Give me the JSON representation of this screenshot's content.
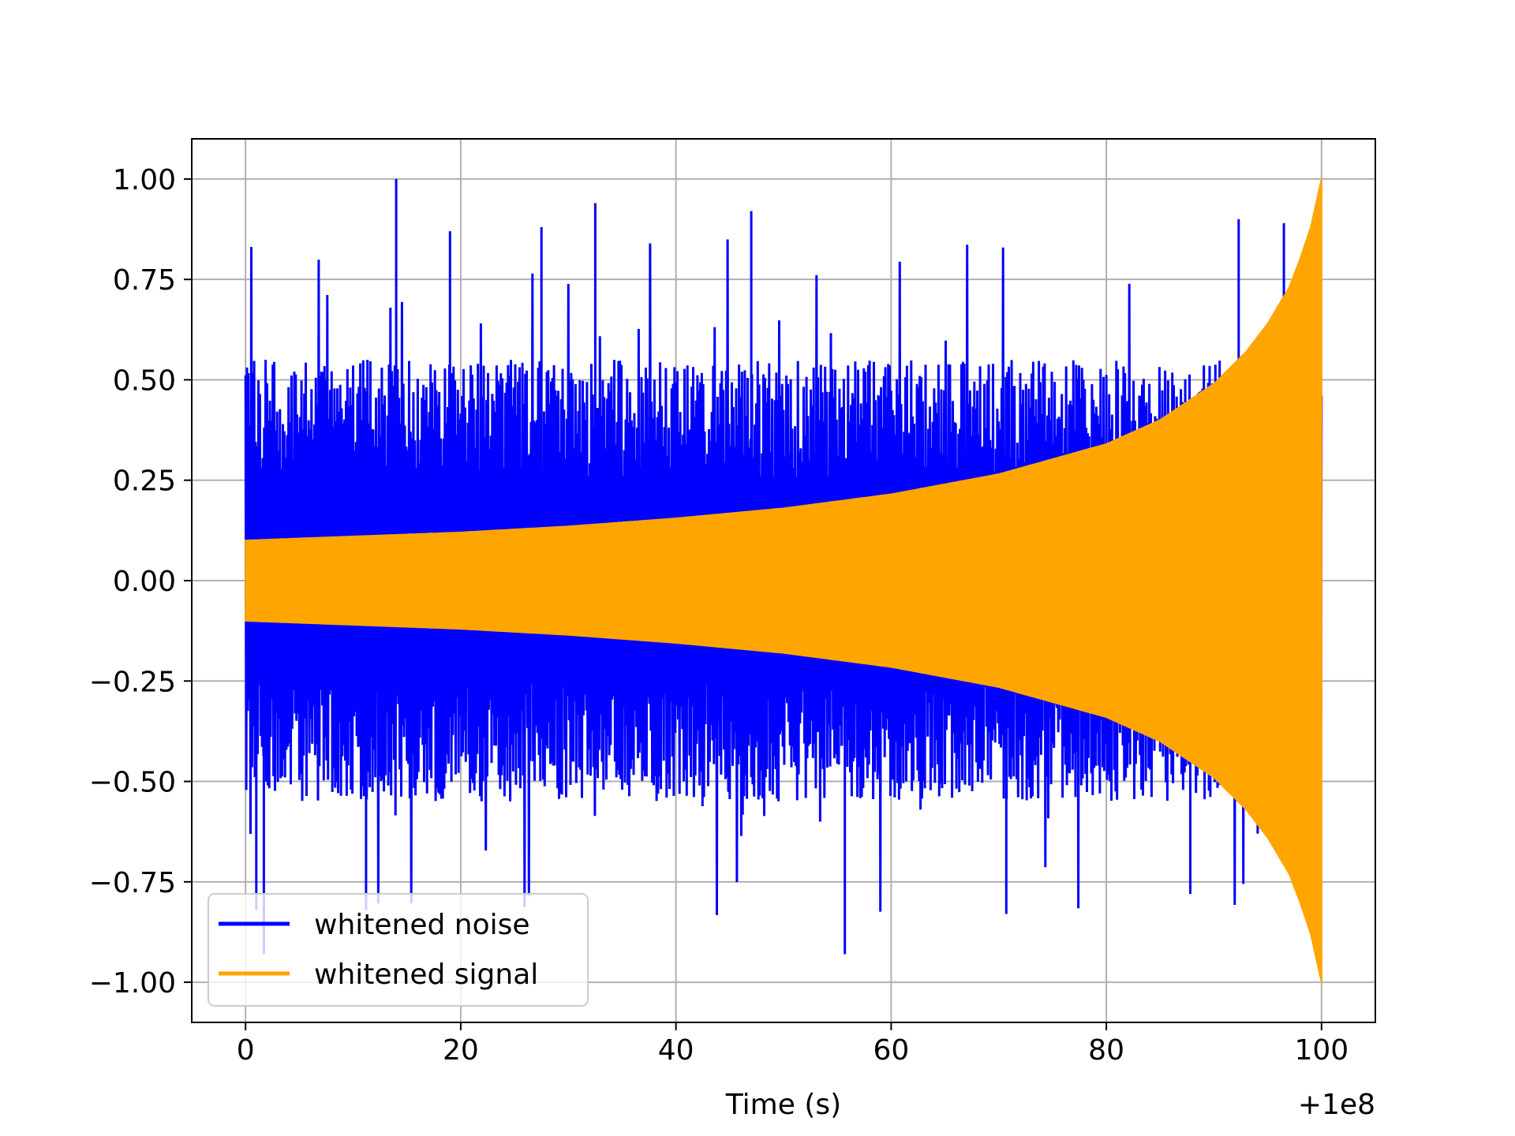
{
  "chart_data": {
    "type": "line",
    "title": "",
    "xlabel": "Time (s)",
    "ylabel": "",
    "x_offset_label": "+1e8",
    "xlim": [
      -5,
      105
    ],
    "ylim": [
      -1.1,
      1.1
    ],
    "x_ticks": [
      0,
      20,
      40,
      60,
      80,
      100
    ],
    "x_tick_labels": [
      "0",
      "20",
      "40",
      "60",
      "80",
      "100"
    ],
    "y_ticks": [
      1.0,
      0.75,
      0.5,
      0.25,
      0.0,
      -0.25,
      -0.5,
      -0.75,
      -1.0
    ],
    "y_tick_labels": [
      "1.00",
      "0.75",
      "0.50",
      "0.25",
      "0.00",
      "−0.25",
      "−0.50",
      "−0.75",
      "−1.00"
    ],
    "grid": true,
    "legend_position": "lower-left",
    "series": [
      {
        "name": "whitened noise",
        "color": "#0000ff",
        "x_range": [
          0,
          100
        ],
        "typical_amplitude": [
          -0.55,
          0.55
        ],
        "y_max": 1.0,
        "y_min": -0.93,
        "peaks": [
          {
            "x": 14.0,
            "y": 1.0
          },
          {
            "x": 32.5,
            "y": 0.94
          },
          {
            "x": 47.0,
            "y": 0.92
          },
          {
            "x": 92.3,
            "y": 0.9
          },
          {
            "x": 96.5,
            "y": 0.89
          },
          {
            "x": 27.5,
            "y": 0.88
          },
          {
            "x": 19.0,
            "y": 0.87
          },
          {
            "x": 55.7,
            "y": -0.93
          },
          {
            "x": 1.7,
            "y": -0.93
          },
          {
            "x": 70.7,
            "y": -0.83
          },
          {
            "x": 11.2,
            "y": -0.82
          },
          {
            "x": 1.0,
            "y": -0.82
          },
          {
            "x": 87.8,
            "y": -0.78
          }
        ]
      },
      {
        "name": "whitened signal",
        "color": "#ffa500",
        "x_range": [
          0,
          100
        ],
        "envelope_x": [
          0,
          10,
          20,
          30,
          40,
          50,
          60,
          70,
          80,
          85,
          90,
          93,
          95,
          97,
          98,
          99,
          100
        ],
        "envelope_y": [
          0.1,
          0.11,
          0.12,
          0.135,
          0.155,
          0.18,
          0.215,
          0.265,
          0.34,
          0.4,
          0.49,
          0.57,
          0.64,
          0.73,
          0.8,
          0.88,
          1.0
        ]
      }
    ]
  }
}
